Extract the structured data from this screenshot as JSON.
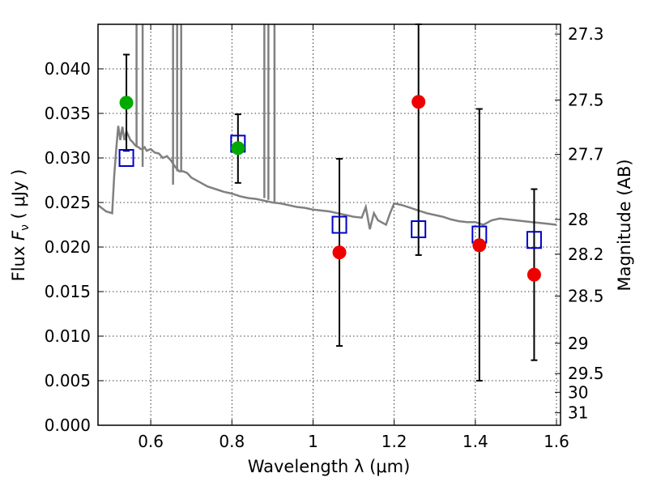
{
  "chart_data": {
    "type": "scatter",
    "xlabel": "Wavelength  λ (μm)",
    "ylabel": "Flux  F_ν  ( μJy )",
    "ylabel_parts": {
      "prefix": "Flux  ",
      "symbol": "F",
      "subscript": "ν",
      "unit": "  ( μJy )"
    },
    "y2label": "Magnitude (AB)",
    "xlim": [
      0.47,
      1.61
    ],
    "ylim": [
      0.0,
      0.045
    ],
    "grid": true,
    "x_ticks": [
      0.6,
      0.8,
      1.0,
      1.2,
      1.4,
      1.6
    ],
    "x_tick_labels": [
      "0.6",
      "0.8",
      "1",
      "1.2",
      "1.4",
      "1.6"
    ],
    "y_ticks": [
      0.0,
      0.005,
      0.01,
      0.015,
      0.02,
      0.025,
      0.03,
      0.035,
      0.04
    ],
    "y_tick_labels": [
      "0.000",
      "0.005",
      "0.010",
      "0.015",
      "0.020",
      "0.025",
      "0.030",
      "0.035",
      "0.040"
    ],
    "mag_ticks": [
      {
        "label": "27.3",
        "flux": 0.0439
      },
      {
        "label": "27.5",
        "flux": 0.0365
      },
      {
        "label": "27.7",
        "flux": 0.0304
      },
      {
        "label": "28",
        "flux": 0.0231
      },
      {
        "label": "28.2",
        "flux": 0.0192
      },
      {
        "label": "28.5",
        "flux": 0.0145
      },
      {
        "label": "29",
        "flux": 0.0092
      },
      {
        "label": "29.5",
        "flux": 0.0058
      },
      {
        "label": "30",
        "flux": 0.0037
      },
      {
        "label": "31",
        "flux": 0.0014
      }
    ],
    "colors": {
      "model": "#808080",
      "box": "#0000cc",
      "green": "#00aa00",
      "red": "#ee0000",
      "errorbar": "#000000"
    },
    "series": [
      {
        "name": "model spectrum",
        "kind": "line",
        "x": [
          0.47,
          0.49,
          0.505,
          0.51,
          0.515,
          0.52,
          0.525,
          0.53,
          0.535,
          0.54,
          0.545,
          0.55,
          0.555,
          0.56,
          0.565,
          0.57,
          0.575,
          0.58,
          0.585,
          0.59,
          0.6,
          0.61,
          0.62,
          0.63,
          0.64,
          0.65,
          0.66,
          0.67,
          0.68,
          0.69,
          0.7,
          0.72,
          0.74,
          0.76,
          0.78,
          0.8,
          0.82,
          0.84,
          0.86,
          0.88,
          0.9,
          0.92,
          0.94,
          0.96,
          0.98,
          1.0,
          1.02,
          1.04,
          1.06,
          1.07,
          1.08,
          1.1,
          1.12,
          1.13,
          1.14,
          1.15,
          1.16,
          1.18,
          1.19,
          1.2,
          1.22,
          1.24,
          1.26,
          1.28,
          1.3,
          1.32,
          1.34,
          1.36,
          1.38,
          1.4,
          1.42,
          1.44,
          1.46,
          1.48,
          1.5,
          1.52,
          1.54,
          1.56,
          1.58,
          1.6
        ],
        "y": [
          0.0247,
          0.024,
          0.0238,
          0.028,
          0.031,
          0.0336,
          0.032,
          0.0335,
          0.032,
          0.033,
          0.0325,
          0.032,
          0.0318,
          0.0315,
          0.0313,
          0.0312,
          0.031,
          0.031,
          0.0312,
          0.0308,
          0.031,
          0.0306,
          0.0305,
          0.03,
          0.0302,
          0.0297,
          0.029,
          0.0285,
          0.0285,
          0.0283,
          0.0278,
          0.0273,
          0.0268,
          0.0265,
          0.0262,
          0.026,
          0.0257,
          0.0255,
          0.0254,
          0.0252,
          0.025,
          0.0249,
          0.0247,
          0.0245,
          0.0244,
          0.0242,
          0.0241,
          0.024,
          0.0238,
          0.0237,
          0.0236,
          0.0234,
          0.0233,
          0.0245,
          0.022,
          0.0238,
          0.023,
          0.0225,
          0.0238,
          0.0249,
          0.0247,
          0.0244,
          0.0241,
          0.0238,
          0.0236,
          0.0234,
          0.0231,
          0.0229,
          0.0228,
          0.0228,
          0.0225,
          0.023,
          0.0232,
          0.0231,
          0.023,
          0.0229,
          0.0228,
          0.0227,
          0.0226,
          0.0225
        ]
      },
      {
        "name": "emission spikes",
        "kind": "vlines",
        "x": [
          0.565,
          0.58,
          0.655,
          0.665,
          0.675,
          0.88,
          0.89,
          0.905
        ],
        "y_base": [
          0.0312,
          0.029,
          0.027,
          0.0285,
          0.0285,
          0.0255,
          0.0253,
          0.025
        ]
      },
      {
        "name": "model band fluxes",
        "kind": "squares",
        "x": [
          0.54,
          0.815,
          1.065,
          1.26,
          1.41,
          1.545
        ],
        "y": [
          0.03,
          0.0316,
          0.0225,
          0.022,
          0.0214,
          0.0208
        ]
      },
      {
        "name": "detections (green)",
        "kind": "circles",
        "color": "green",
        "x": [
          0.54,
          0.815
        ],
        "y": [
          0.0362,
          0.0311
        ]
      },
      {
        "name": "observations (red)",
        "kind": "circles",
        "color": "red",
        "x": [
          1.065,
          1.26,
          1.41,
          1.545
        ],
        "y": [
          0.0194,
          0.0363,
          0.0202,
          0.0169
        ]
      },
      {
        "name": "error bars",
        "kind": "errorbars",
        "x": [
          0.54,
          0.815,
          1.065,
          1.26,
          1.41,
          1.545
        ],
        "low": [
          0.0308,
          0.0272,
          0.0089,
          0.0191,
          0.005,
          0.0073
        ],
        "high": [
          0.0416,
          0.0349,
          0.0299,
          0.045,
          0.0355,
          0.0265
        ]
      }
    ]
  }
}
